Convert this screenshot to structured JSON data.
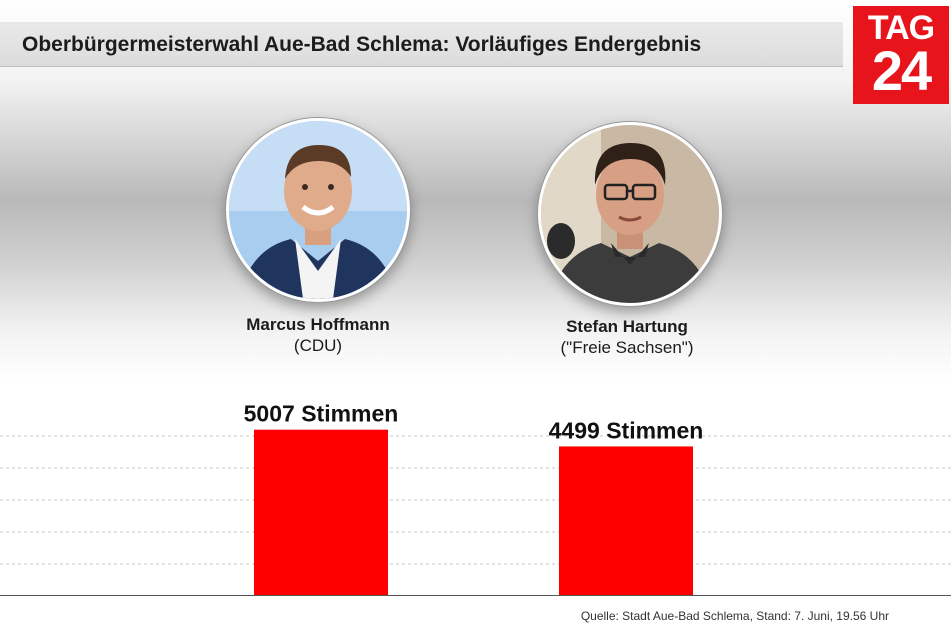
{
  "header": {
    "title": "Oberbürgermeisterwahl Aue-Bad Schlema: Vorläufiges Endergebnis"
  },
  "logo": {
    "line1": "TAG",
    "line2": "24"
  },
  "candidates": [
    {
      "name": "Marcus Hoffmann",
      "party": "CDU"
    },
    {
      "name": "Stefan Hartung",
      "party": "\"Freie Sachsen\""
    }
  ],
  "chart_data": {
    "type": "bar",
    "categories": [
      "Marcus Hoffmann",
      "Stefan Hartung"
    ],
    "values": [
      5007,
      4499
    ],
    "data_labels": [
      "5007 Stimmen",
      "4499 Stimmen"
    ],
    "ylim": [
      0,
      5300
    ],
    "grid": true,
    "bar_color": "#ff0000"
  },
  "source": "Quelle: Stadt Aue-Bad Schlema, Stand: 7. Juni, 19.56 Uhr",
  "colors": {
    "accent": "#e8141b",
    "bar": "#ff0000",
    "title_bg": "#e0e0e0"
  }
}
